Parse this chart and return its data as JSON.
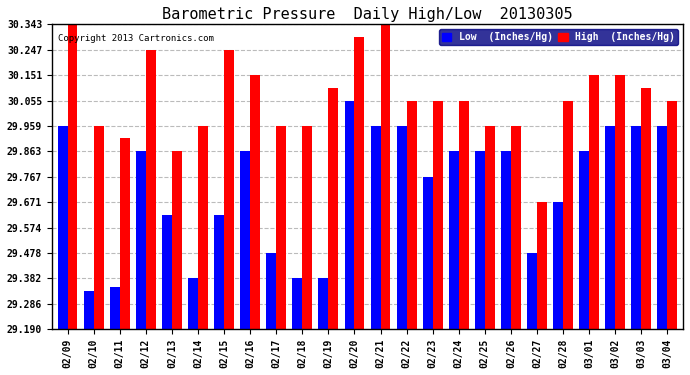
{
  "title": "Barometric Pressure  Daily High/Low  20130305",
  "copyright": "Copyright 2013 Cartronics.com",
  "dates": [
    "02/09",
    "02/10",
    "02/11",
    "02/12",
    "02/13",
    "02/14",
    "02/15",
    "02/16",
    "02/17",
    "02/18",
    "02/19",
    "02/20",
    "02/21",
    "02/22",
    "02/23",
    "02/24",
    "02/25",
    "02/26",
    "02/27",
    "02/28",
    "03/01",
    "03/02",
    "03/03",
    "03/04"
  ],
  "low_values": [
    29.959,
    29.334,
    29.35,
    29.863,
    29.623,
    29.382,
    29.623,
    29.863,
    29.478,
    29.382,
    29.382,
    30.055,
    29.959,
    29.959,
    29.767,
    29.863,
    29.863,
    29.863,
    29.478,
    29.671,
    29.863,
    29.959,
    29.959,
    29.959
  ],
  "high_values": [
    30.343,
    29.959,
    29.912,
    30.247,
    29.863,
    29.959,
    30.247,
    30.151,
    29.959,
    29.959,
    30.103,
    30.295,
    30.343,
    30.055,
    30.055,
    30.055,
    29.959,
    29.959,
    29.671,
    30.055,
    30.151,
    30.151,
    30.103,
    30.055
  ],
  "low_color": "#0000ff",
  "high_color": "#ff0000",
  "bg_color": "#ffffff",
  "grid_color": "#aaaaaa",
  "yticks": [
    29.19,
    29.286,
    29.382,
    29.478,
    29.574,
    29.671,
    29.767,
    29.863,
    29.959,
    30.055,
    30.151,
    30.247,
    30.343
  ],
  "ymin": 29.19,
  "ymax": 30.343,
  "title_fontsize": 11,
  "legend_low_label": "Low  (Inches/Hg)",
  "legend_high_label": "High  (Inches/Hg)"
}
